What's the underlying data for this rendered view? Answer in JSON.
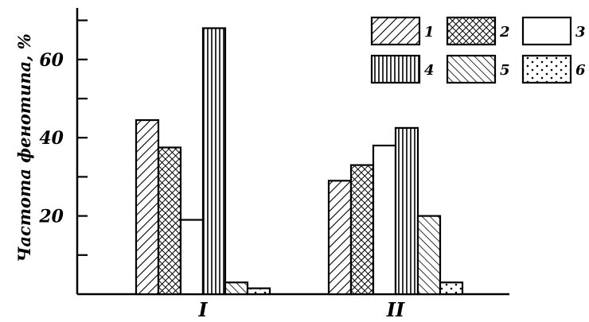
{
  "chart_data": {
    "type": "bar",
    "categories": [
      "I",
      "II"
    ],
    "series": [
      {
        "name": "1",
        "pattern": "diag-right",
        "values": [
          44.5,
          29
        ]
      },
      {
        "name": "2",
        "pattern": "crosshatch",
        "values": [
          37.5,
          33
        ]
      },
      {
        "name": "3",
        "pattern": "blank",
        "values": [
          19,
          38
        ]
      },
      {
        "name": "4",
        "pattern": "vertical",
        "values": [
          68,
          42.5
        ]
      },
      {
        "name": "5",
        "pattern": "diag-left",
        "values": [
          3,
          20
        ]
      },
      {
        "name": "6",
        "pattern": "dots",
        "values": [
          1.5,
          3
        ]
      }
    ],
    "ylabel": "Частота фенотипа, %",
    "yticks": [
      "20",
      "40",
      "60"
    ],
    "ylim": [
      0,
      72
    ],
    "legend_position": "top-right",
    "grid": false
  }
}
